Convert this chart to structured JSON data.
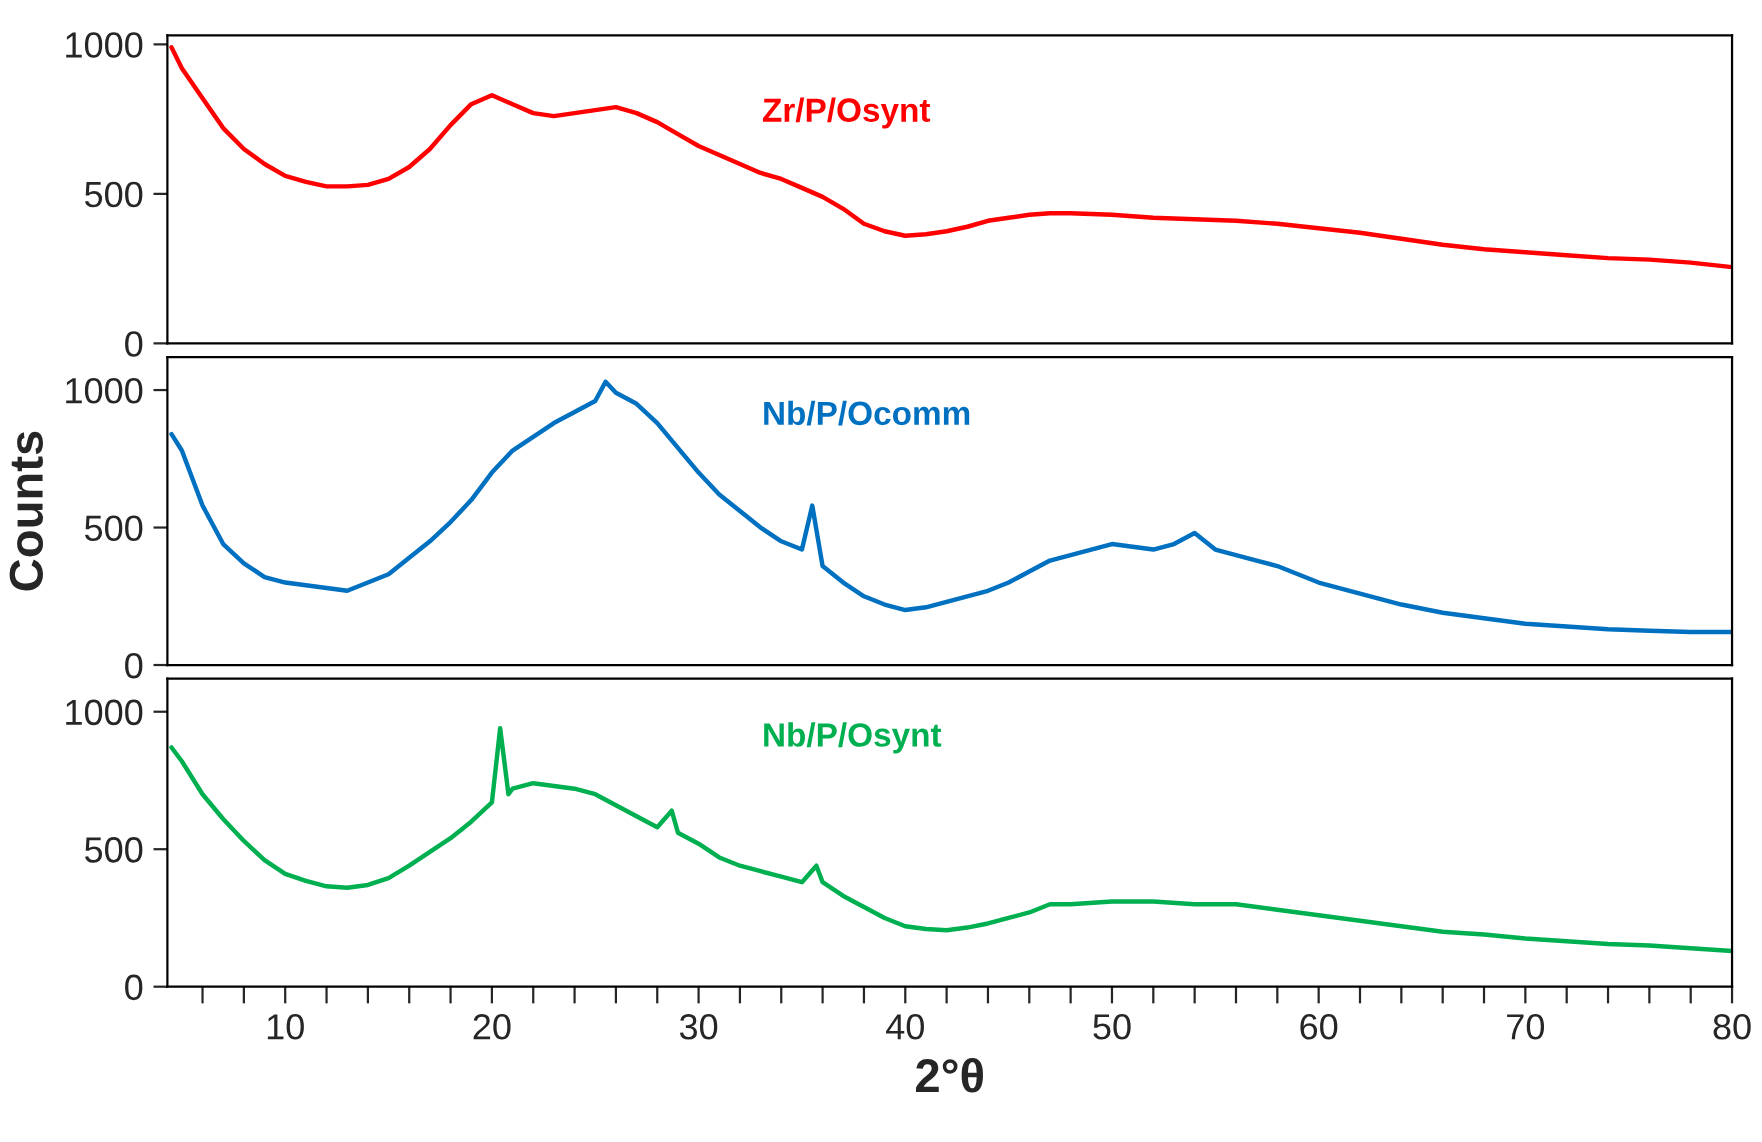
{
  "chart_data": [
    {
      "type": "line",
      "xlim": [
        4.3,
        80
      ],
      "ylim": [
        0,
        1030
      ],
      "yticks": [
        0,
        500,
        1000
      ],
      "tick_labels": "y",
      "grid": false,
      "legend": false,
      "series": [
        {
          "name": "Zr/P/Osynt",
          "color": "#ff0000",
          "x": [
            4.5,
            5,
            6,
            7,
            8,
            9,
            10,
            11,
            12,
            13,
            14,
            15,
            16,
            17,
            18,
            19,
            20,
            21,
            22,
            23,
            24,
            25,
            26,
            27,
            28,
            29,
            30,
            31,
            32,
            33,
            34,
            35,
            36,
            37,
            38,
            39,
            40,
            41,
            42,
            43,
            44,
            45,
            46,
            47,
            48,
            50,
            52,
            54,
            56,
            58,
            60,
            62,
            64,
            66,
            68,
            70,
            72,
            74,
            76,
            78,
            80
          ],
          "values": [
            990,
            920,
            820,
            720,
            650,
            600,
            560,
            540,
            525,
            525,
            530,
            550,
            590,
            650,
            730,
            800,
            830,
            800,
            770,
            760,
            770,
            780,
            790,
            770,
            740,
            700,
            660,
            630,
            600,
            570,
            550,
            520,
            490,
            450,
            400,
            375,
            360,
            365,
            375,
            390,
            410,
            420,
            430,
            435,
            435,
            430,
            420,
            415,
            410,
            400,
            385,
            370,
            350,
            330,
            315,
            305,
            295,
            285,
            280,
            270,
            255
          ]
        }
      ]
    },
    {
      "type": "line",
      "xlim": [
        4.3,
        80
      ],
      "ylim": [
        0,
        1120
      ],
      "yticks": [
        0,
        500,
        1000
      ],
      "tick_labels": "y",
      "ylabel": "Counts",
      "grid": false,
      "legend": false,
      "series": [
        {
          "name": "Nb/P/Ocomm",
          "color": "#0070c0",
          "x": [
            4.5,
            5,
            6,
            7,
            8,
            9,
            10,
            11,
            12,
            13,
            14,
            15,
            16,
            17,
            18,
            19,
            20,
            21,
            22,
            23,
            24,
            25,
            25.5,
            26,
            27,
            28,
            29,
            30,
            31,
            32,
            33,
            34,
            35,
            35.5,
            36,
            37,
            38,
            39,
            40,
            41,
            42,
            43,
            44,
            45,
            46,
            47,
            48,
            49,
            50,
            51,
            52,
            53,
            54,
            55,
            56,
            57,
            58,
            59,
            60,
            62,
            64,
            66,
            68,
            70,
            72,
            74,
            76,
            78,
            80
          ],
          "values": [
            840,
            780,
            580,
            440,
            370,
            320,
            300,
            290,
            280,
            270,
            300,
            330,
            390,
            450,
            520,
            600,
            700,
            780,
            830,
            880,
            920,
            960,
            1030,
            990,
            950,
            880,
            790,
            700,
            620,
            560,
            500,
            450,
            420,
            580,
            360,
            300,
            250,
            220,
            200,
            210,
            230,
            250,
            270,
            300,
            340,
            380,
            400,
            420,
            440,
            430,
            420,
            440,
            480,
            420,
            400,
            380,
            360,
            330,
            300,
            260,
            220,
            190,
            170,
            150,
            140,
            130,
            125,
            120,
            120
          ]
        }
      ]
    },
    {
      "type": "line",
      "xlim": [
        4.3,
        80
      ],
      "ylim": [
        0,
        1120
      ],
      "yticks": [
        0,
        500,
        1000
      ],
      "xlabel": "2°θ",
      "grid": false,
      "legend": false,
      "xticks": [
        {
          "value": 6,
          "label": null
        },
        {
          "value": 8,
          "label": null
        },
        10,
        {
          "value": 12,
          "label": null
        },
        {
          "value": 14,
          "label": null
        },
        {
          "value": 16,
          "label": null
        },
        {
          "value": 18,
          "label": null
        },
        20,
        {
          "value": 22,
          "label": null
        },
        {
          "value": 24,
          "label": null
        },
        {
          "value": 26,
          "label": null
        },
        {
          "value": 28,
          "label": null
        },
        30,
        {
          "value": 32,
          "label": null
        },
        {
          "value": 34,
          "label": null
        },
        {
          "value": 36,
          "label": null
        },
        {
          "value": 38,
          "label": null
        },
        40,
        {
          "value": 42,
          "label": null
        },
        {
          "value": 44,
          "label": null
        },
        {
          "value": 46,
          "label": null
        },
        {
          "value": 48,
          "label": null
        },
        50,
        {
          "value": 52,
          "label": null
        },
        {
          "value": 54,
          "label": null
        },
        {
          "value": 56,
          "label": null
        },
        {
          "value": 58,
          "label": null
        },
        60,
        {
          "value": 62,
          "label": null
        },
        {
          "value": 64,
          "label": null
        },
        {
          "value": 66,
          "label": null
        },
        {
          "value": 68,
          "label": null
        },
        70,
        {
          "value": 72,
          "label": null
        },
        {
          "value": 74,
          "label": null
        },
        {
          "value": 76,
          "label": null
        },
        {
          "value": 78,
          "label": null
        },
        80
      ],
      "series": [
        {
          "name": "Nb/P/Osynt",
          "color": "#00b050",
          "x": [
            4.5,
            5,
            6,
            7,
            8,
            9,
            10,
            11,
            12,
            13,
            14,
            15,
            16,
            17,
            18,
            19,
            20,
            20.4,
            20.8,
            21,
            22,
            23,
            24,
            25,
            26,
            27,
            28,
            28.7,
            29,
            30,
            31,
            32,
            33,
            34,
            35,
            35.7,
            36,
            37,
            38,
            39,
            40,
            41,
            42,
            43,
            44,
            45,
            46,
            47,
            48,
            50,
            52,
            54,
            56,
            58,
            60,
            62,
            64,
            66,
            68,
            70,
            72,
            74,
            76,
            78,
            80
          ],
          "values": [
            870,
            820,
            700,
            610,
            530,
            460,
            410,
            385,
            365,
            360,
            370,
            395,
            440,
            490,
            540,
            600,
            670,
            940,
            700,
            720,
            740,
            730,
            720,
            700,
            660,
            620,
            580,
            640,
            560,
            520,
            470,
            440,
            420,
            400,
            380,
            440,
            380,
            330,
            290,
            250,
            220,
            210,
            205,
            215,
            230,
            250,
            270,
            300,
            300,
            310,
            310,
            300,
            300,
            280,
            260,
            240,
            220,
            200,
            190,
            175,
            165,
            155,
            150,
            140,
            130
          ]
        }
      ]
    }
  ]
}
